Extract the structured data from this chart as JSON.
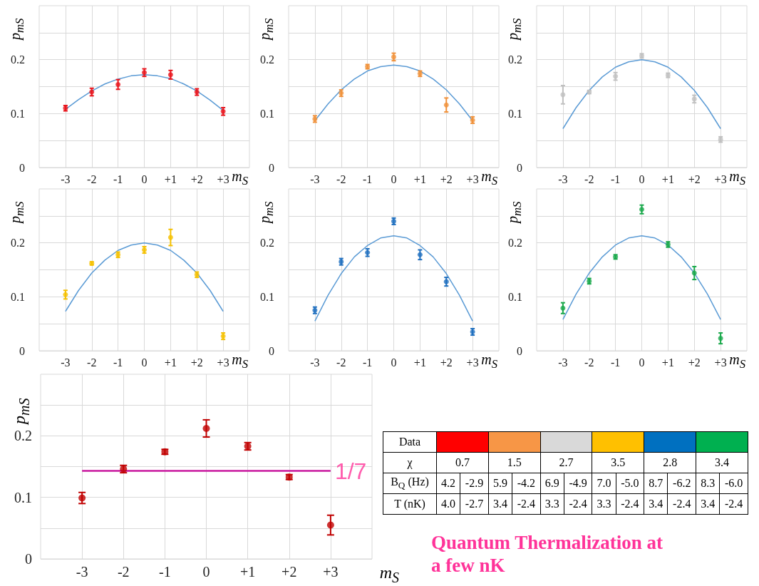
{
  "chart_data": [
    {
      "type": "scatter",
      "xlabel": "m$_{S}$",
      "ylabel": "p$_{mS}$",
      "x": [
        -3,
        -2,
        -1,
        0,
        1,
        2,
        3
      ],
      "xlim": [
        -4,
        4
      ],
      "xticks": [
        -3,
        -2,
        -1,
        0,
        {
          "value": 1,
          "label": "+1"
        },
        {
          "value": 2,
          "label": "+2"
        },
        {
          "value": 3,
          "label": "+3"
        }
      ],
      "ylim": [
        0,
        0.3
      ],
      "yticks": [
        0,
        {
          "value": 0.05,
          "label": null
        },
        0.1,
        {
          "value": 0.15,
          "label": null
        },
        0.2,
        {
          "value": 0.25,
          "label": null
        }
      ],
      "grid": true,
      "marker": "circle",
      "series": [
        {
          "type": "scatter",
          "color": "#e8141c",
          "values": [
            0.11,
            0.14,
            0.154,
            0.176,
            0.172,
            0.14,
            0.104
          ],
          "errors": [
            0.005,
            0.007,
            0.009,
            0.007,
            0.008,
            0.006,
            0.007
          ]
        },
        {
          "type": "line",
          "color": "#5b9bd5",
          "marker": "none",
          "x": [
            -3,
            -2.5,
            -2,
            -1.5,
            -1,
            -0.5,
            0,
            0.5,
            1,
            1.5,
            2,
            2.5,
            3
          ],
          "values": [
            0.108,
            0.126,
            0.142,
            0.155,
            0.164,
            0.17,
            0.172,
            0.17,
            0.165,
            0.155,
            0.142,
            0.125,
            0.106
          ]
        }
      ]
    },
    {
      "type": "scatter",
      "xlabel": "m$_{S}$",
      "ylabel": "p$_{mS}$",
      "x": [
        -3,
        -2,
        -1,
        0,
        1,
        2,
        3
      ],
      "xlim": [
        -4,
        4
      ],
      "xticks": [
        -3,
        -2,
        -1,
        0,
        {
          "value": 1,
          "label": "+1"
        },
        {
          "value": 2,
          "label": "+2"
        },
        {
          "value": 3,
          "label": "+3"
        }
      ],
      "ylim": [
        0,
        0.3
      ],
      "yticks": [
        0,
        {
          "value": 0.05,
          "label": null
        },
        0.1,
        {
          "value": 0.15,
          "label": null
        },
        0.2,
        {
          "value": 0.25,
          "label": null
        }
      ],
      "grid": true,
      "marker": "circle",
      "series": [
        {
          "type": "scatter",
          "color": "#f0913a",
          "values": [
            0.09,
            0.138,
            0.187,
            0.205,
            0.174,
            0.116,
            0.088
          ],
          "errors": [
            0.006,
            0.006,
            0.004,
            0.007,
            0.005,
            0.013,
            0.006
          ]
        },
        {
          "type": "line",
          "color": "#5b9bd5",
          "marker": "none",
          "x": [
            -3,
            -2.5,
            -2,
            -1.5,
            -1,
            -0.5,
            0,
            0.5,
            1,
            1.5,
            2,
            2.5,
            3
          ],
          "values": [
            0.087,
            0.118,
            0.144,
            0.164,
            0.179,
            0.187,
            0.19,
            0.187,
            0.179,
            0.164,
            0.144,
            0.118,
            0.087
          ]
        }
      ]
    },
    {
      "type": "scatter",
      "xlabel": "m$_{S}$",
      "ylabel": "p$_{mS}$",
      "x": [
        -3,
        -2,
        -1,
        0,
        1,
        2,
        3
      ],
      "xlim": [
        -4,
        4
      ],
      "xticks": [
        -3,
        -2,
        -1,
        0,
        {
          "value": 1,
          "label": "+1"
        },
        {
          "value": 2,
          "label": "+2"
        },
        {
          "value": 3,
          "label": "+3"
        }
      ],
      "ylim": [
        0,
        0.3
      ],
      "yticks": [
        0,
        {
          "value": 0.05,
          "label": null
        },
        0.1,
        {
          "value": 0.15,
          "label": null
        },
        0.2,
        {
          "value": 0.25,
          "label": null
        }
      ],
      "grid": true,
      "marker": "circle",
      "series": [
        {
          "type": "scatter",
          "color": "#c0c0c0",
          "values": [
            0.135,
            0.14,
            0.169,
            0.207,
            0.171,
            0.127,
            0.052
          ],
          "errors": [
            0.017,
            0.003,
            0.007,
            0.004,
            0.004,
            0.007,
            0.005
          ]
        },
        {
          "type": "line",
          "color": "#5b9bd5",
          "marker": "none",
          "x": [
            -3,
            -2.5,
            -2,
            -1.5,
            -1,
            -0.5,
            0,
            0.5,
            1,
            1.5,
            2,
            2.5,
            3
          ],
          "values": [
            0.072,
            0.111,
            0.143,
            0.168,
            0.186,
            0.196,
            0.2,
            0.196,
            0.186,
            0.168,
            0.143,
            0.111,
            0.072
          ]
        }
      ]
    },
    {
      "type": "scatter",
      "xlabel": "m$_{S}$",
      "ylabel": "p$_{mS}$",
      "x": [
        -3,
        -2,
        -1,
        0,
        1,
        2,
        3
      ],
      "xlim": [
        -4,
        4
      ],
      "xticks": [
        -3,
        -2,
        -1,
        0,
        {
          "value": 1,
          "label": "+1"
        },
        {
          "value": 2,
          "label": "+2"
        },
        {
          "value": 3,
          "label": "+3"
        }
      ],
      "ylim": [
        0,
        0.3
      ],
      "yticks": [
        0,
        {
          "value": 0.05,
          "label": null
        },
        0.1,
        {
          "value": 0.15,
          "label": null
        },
        0.2,
        {
          "value": 0.25,
          "label": null
        }
      ],
      "grid": true,
      "marker": "circle",
      "series": [
        {
          "type": "scatter",
          "color": "#f5c000",
          "values": [
            0.104,
            0.162,
            0.178,
            0.187,
            0.21,
            0.141,
            0.027
          ],
          "errors": [
            0.008,
            0.003,
            0.005,
            0.006,
            0.015,
            0.005,
            0.006
          ]
        },
        {
          "type": "line",
          "color": "#5b9bd5",
          "marker": "none",
          "x": [
            -3,
            -2.5,
            -2,
            -1.5,
            -1,
            -0.5,
            0,
            0.5,
            1,
            1.5,
            2,
            2.5,
            3
          ],
          "values": [
            0.073,
            0.112,
            0.144,
            0.168,
            0.186,
            0.196,
            0.2,
            0.196,
            0.186,
            0.168,
            0.144,
            0.112,
            0.073
          ]
        }
      ]
    },
    {
      "type": "scatter",
      "xlabel": "m$_{S}$",
      "ylabel": "p$_{mS}$",
      "x": [
        -3,
        -2,
        -1,
        0,
        1,
        2,
        3
      ],
      "xlim": [
        -4,
        4
      ],
      "xticks": [
        -3,
        -2,
        -1,
        0,
        {
          "value": 1,
          "label": "+1"
        },
        {
          "value": 2,
          "label": "+2"
        },
        {
          "value": 3,
          "label": "+3"
        }
      ],
      "ylim": [
        0,
        0.3
      ],
      "yticks": [
        0,
        {
          "value": 0.05,
          "label": null
        },
        0.1,
        {
          "value": 0.15,
          "label": null
        },
        0.2,
        {
          "value": 0.25,
          "label": null
        }
      ],
      "grid": true,
      "marker": "circle",
      "series": [
        {
          "type": "scatter",
          "color": "#1f6fbf",
          "values": [
            0.075,
            0.165,
            0.182,
            0.24,
            0.178,
            0.128,
            0.035
          ],
          "errors": [
            0.006,
            0.006,
            0.007,
            0.006,
            0.009,
            0.008,
            0.006
          ]
        },
        {
          "type": "line",
          "color": "#5b9bd5",
          "marker": "none",
          "x": [
            -3,
            -2.5,
            -2,
            -1.5,
            -1,
            -0.5,
            0,
            0.5,
            1,
            1.5,
            2,
            2.5,
            3
          ],
          "values": [
            0.055,
            0.103,
            0.143,
            0.174,
            0.195,
            0.209,
            0.213,
            0.209,
            0.195,
            0.174,
            0.143,
            0.103,
            0.055
          ]
        }
      ]
    },
    {
      "type": "scatter",
      "xlabel": "m$_{S}$",
      "ylabel": "p$_{mS}$",
      "x": [
        -3,
        -2,
        -1,
        0,
        1,
        2,
        3
      ],
      "xlim": [
        -4,
        4
      ],
      "xticks": [
        -3,
        -2,
        -1,
        0,
        {
          "value": 1,
          "label": "+1"
        },
        {
          "value": 2,
          "label": "+2"
        },
        {
          "value": 3,
          "label": "+3"
        }
      ],
      "ylim": [
        0,
        0.3
      ],
      "yticks": [
        0,
        {
          "value": 0.05,
          "label": null
        },
        0.1,
        {
          "value": 0.15,
          "label": null
        },
        0.2,
        {
          "value": 0.25,
          "label": null
        }
      ],
      "grid": true,
      "marker": "circle",
      "series": [
        {
          "type": "scatter",
          "color": "#18a84a",
          "values": [
            0.079,
            0.129,
            0.174,
            0.262,
            0.197,
            0.144,
            0.023
          ],
          "errors": [
            0.01,
            0.005,
            0.004,
            0.008,
            0.005,
            0.012,
            0.01
          ]
        },
        {
          "type": "line",
          "color": "#5b9bd5",
          "marker": "none",
          "x": [
            -3,
            -2.5,
            -2,
            -1.5,
            -1,
            -0.5,
            0,
            0.5,
            1,
            1.5,
            2,
            2.5,
            3
          ],
          "values": [
            0.058,
            0.105,
            0.144,
            0.174,
            0.196,
            0.209,
            0.213,
            0.209,
            0.196,
            0.174,
            0.144,
            0.105,
            0.058
          ]
        }
      ]
    },
    {
      "type": "scatter",
      "xlabel": "m$_{S}$",
      "ylabel": "p$_{mS}$",
      "x": [
        -3,
        -2,
        -1,
        0,
        1,
        2,
        3
      ],
      "xlim": [
        -4,
        4
      ],
      "xticks": [
        -3,
        -2,
        -1,
        0,
        {
          "value": 1,
          "label": "+1"
        },
        {
          "value": 2,
          "label": "+2"
        },
        {
          "value": 3,
          "label": "+3"
        }
      ],
      "ylim": [
        0,
        0.3
      ],
      "yticks": [
        0,
        {
          "value": 0.05,
          "label": null
        },
        0.1,
        {
          "value": 0.15,
          "label": null
        },
        0.2,
        {
          "value": 0.25,
          "label": null
        }
      ],
      "grid": true,
      "marker": "circle",
      "ref_lines": [
        {
          "axis": "y",
          "value": 0.143,
          "color": "#c8179e"
        }
      ],
      "annotations": [
        {
          "text": "1/7",
          "x": 3,
          "y": 0.143
        }
      ],
      "series": [
        {
          "type": "scatter",
          "color": "#c00000",
          "values": [
            0.099,
            0.146,
            0.174,
            0.212,
            0.183,
            0.133,
            0.055
          ],
          "errors": [
            0.009,
            0.006,
            0.004,
            0.014,
            0.006,
            0.004,
            0.016
          ]
        }
      ]
    },
    {
      "type": "other",
      "y_categories": [
        "Data",
        "χ",
        "B$_{Q}$ (Hz)",
        "T (nK)"
      ],
      "colors": [
        "#ff0000",
        "#f79646",
        "#d9d9d9",
        "#ffc000",
        "#0070c0",
        "#00b050"
      ],
      "cell_labels": [
        [
          "0.7",
          "1.5",
          "2.7",
          "3.5",
          "2.8",
          "3.4"
        ],
        [
          "4.2",
          "-2.9",
          "5.9",
          "-4.2",
          "6.9",
          "-4.9",
          "7.0",
          "-5.0",
          "8.7",
          "-6.2",
          "8.3",
          "-6.0"
        ],
        [
          "4.0",
          "-2.7",
          "3.4",
          "-2.4",
          "3.3",
          "-2.4",
          "3.3",
          "-2.4",
          "3.4",
          "-2.4",
          "3.4",
          "-2.4"
        ]
      ],
      "annotations": [
        "Quantum Thermalization at a few nK"
      ]
    }
  ]
}
